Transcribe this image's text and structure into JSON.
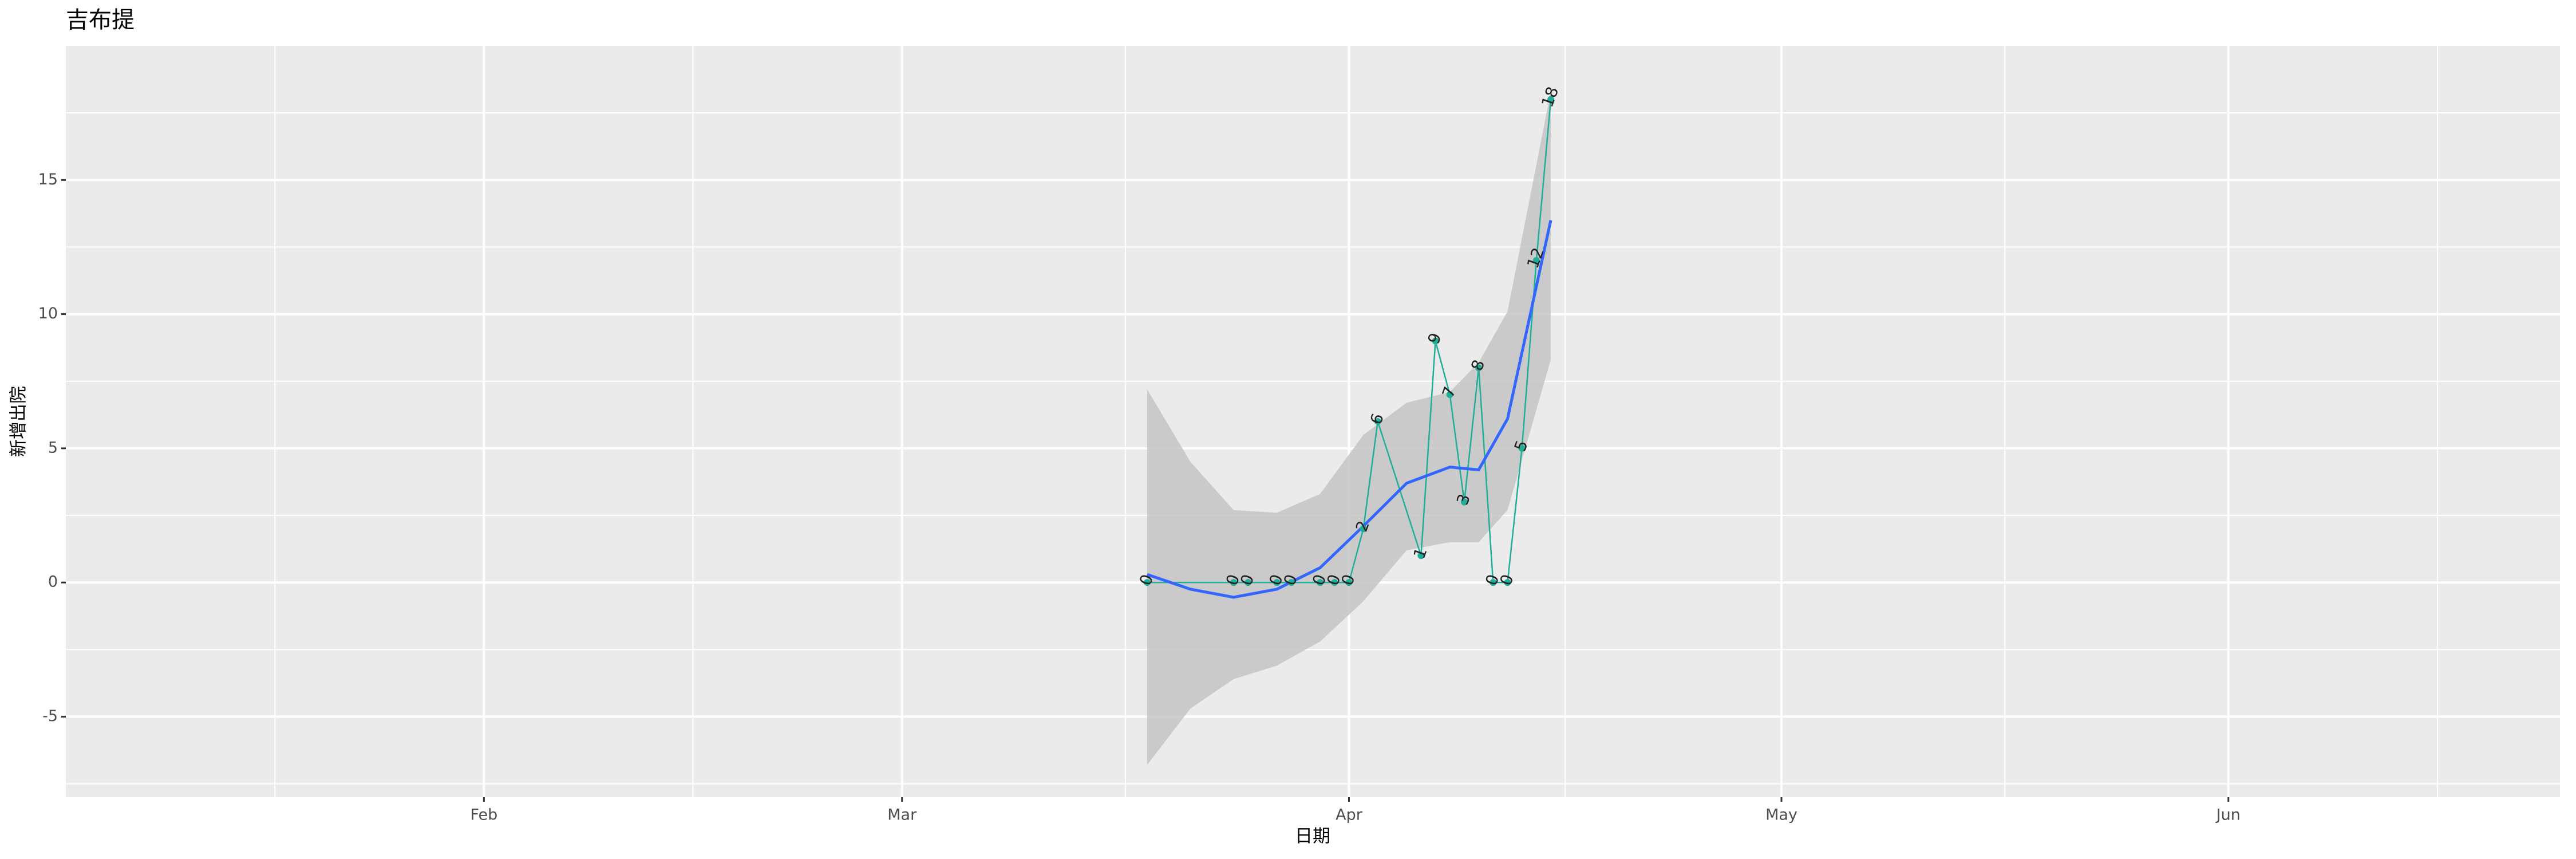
{
  "chart_data": {
    "type": "line",
    "title": "吉布提",
    "xlabel": "日期",
    "ylabel": "新增出院",
    "x": [
      "03-18",
      "03-24",
      "03-25",
      "03-27",
      "03-28",
      "03-30",
      "03-31",
      "04-01",
      "04-02",
      "04-03",
      "04-06",
      "04-07",
      "04-08",
      "04-09",
      "04-10",
      "04-11",
      "04-12",
      "04-13",
      "04-14",
      "04-15"
    ],
    "values": [
      0,
      0,
      0,
      0,
      0,
      0,
      0,
      0,
      2,
      6,
      1,
      9,
      7,
      3,
      8,
      0,
      0,
      5,
      12,
      18
    ],
    "color": "#1fae98",
    "smooth": {
      "color": "#3366ff",
      "band_color": "#c4c4c4",
      "x": [
        "03-18",
        "03-21",
        "03-24",
        "03-27",
        "03-30",
        "04-02",
        "04-05",
        "04-08",
        "04-10",
        "04-12",
        "04-15"
      ],
      "values": [
        0.3,
        -0.25,
        -0.55,
        -0.25,
        0.55,
        2.1,
        3.7,
        4.3,
        4.2,
        6.1,
        13.5
      ],
      "lower": [
        -6.8,
        -4.7,
        -3.6,
        -3.1,
        -2.2,
        -0.7,
        1.2,
        1.5,
        1.5,
        2.7,
        8.3
      ],
      "upper": [
        7.2,
        4.5,
        2.7,
        2.6,
        3.3,
        5.5,
        6.7,
        7.1,
        8.2,
        10.1,
        18.3
      ]
    },
    "xlim": [
      "01-03",
      "06-24"
    ],
    "xticks": [
      {
        "value": "02-01",
        "label": "Feb"
      },
      {
        "value": "03-01",
        "label": "Mar"
      },
      {
        "value": "04-01",
        "label": "Apr"
      },
      {
        "value": "05-01",
        "label": "May"
      },
      {
        "value": "06-01",
        "label": "Jun"
      }
    ],
    "ylim": [
      -8.0,
      20.0
    ],
    "yticks": [
      -5,
      0,
      5,
      10,
      15
    ],
    "grid": true
  }
}
